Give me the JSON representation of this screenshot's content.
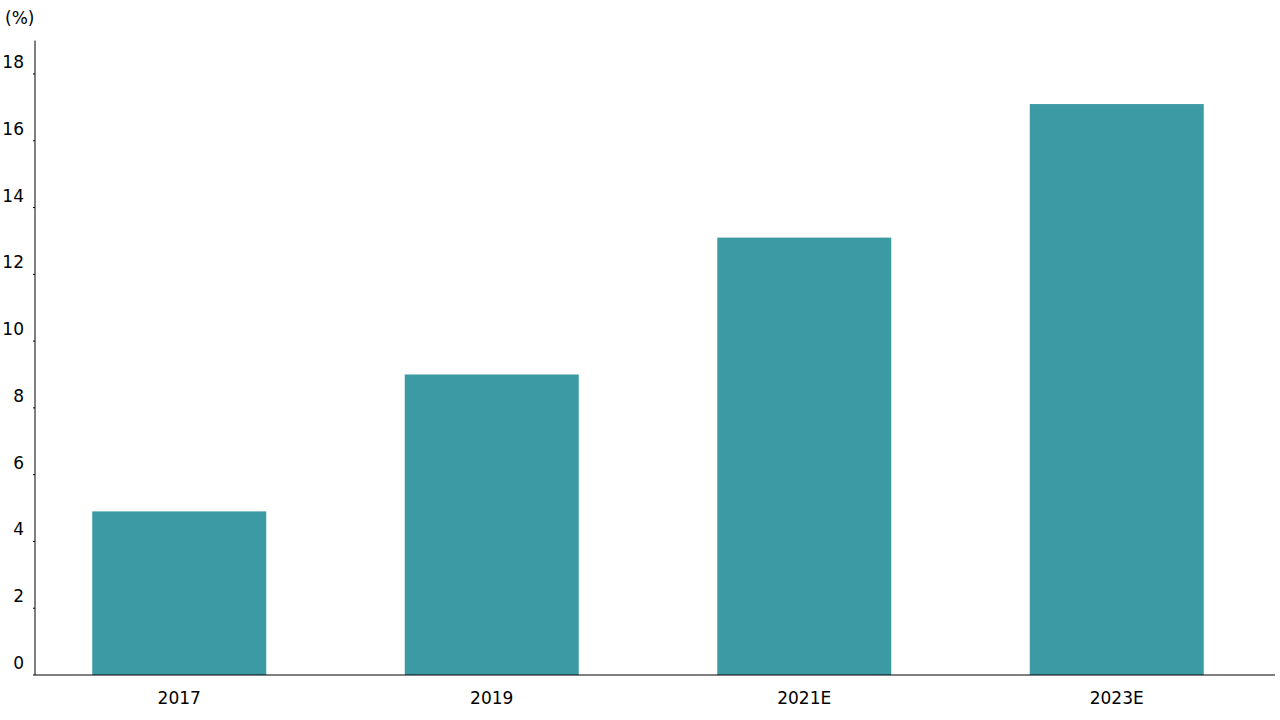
{
  "chart_data": {
    "type": "bar",
    "y_label": "(%)",
    "categories": [
      "2017",
      "2019",
      "2021E",
      "2023E"
    ],
    "values": [
      4.9,
      9.0,
      13.1,
      17.1
    ],
    "color": "#3c9aa5",
    "ylim": [
      0,
      19
    ],
    "yticks": [
      0,
      2,
      4,
      6,
      8,
      10,
      12,
      14,
      16,
      18
    ],
    "grid": false
  }
}
